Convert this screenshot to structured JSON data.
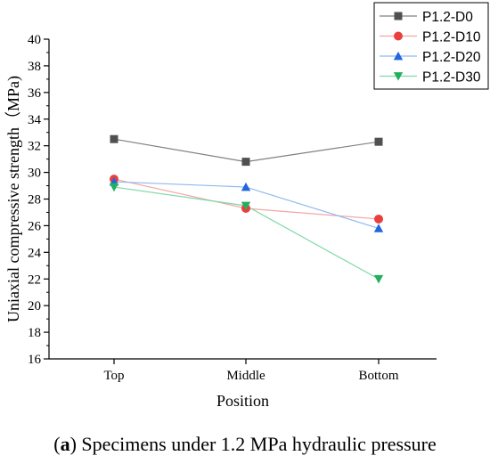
{
  "chart_data": {
    "type": "line",
    "categories": [
      "Top",
      "Middle",
      "Bottom"
    ],
    "series": [
      {
        "name": "P1.2-D0",
        "values": [
          32.5,
          30.8,
          32.3
        ],
        "color": "#808080",
        "marker_color": "#505050",
        "marker": "square"
      },
      {
        "name": "P1.2-D10",
        "values": [
          29.5,
          27.3,
          26.5
        ],
        "color": "#f4a6a6",
        "marker_color": "#e8413d",
        "marker": "circle"
      },
      {
        "name": "P1.2-D20",
        "values": [
          29.3,
          28.9,
          25.8
        ],
        "color": "#8fb9ef",
        "marker_color": "#1f66e0",
        "marker": "triangle-up"
      },
      {
        "name": "P1.2-D30",
        "values": [
          28.9,
          27.5,
          22.0
        ],
        "color": "#7fd8a7",
        "marker_color": "#22b05e",
        "marker": "triangle-down"
      }
    ],
    "xlabel": "Position",
    "ylabel": "Uniaxial compressive strength（MPa)",
    "ylim": [
      16,
      40
    ],
    "yticks": [
      16,
      18,
      20,
      22,
      24,
      26,
      28,
      30,
      32,
      34,
      36,
      38,
      40
    ],
    "legend_position": "top-right",
    "grid": false
  },
  "caption": {
    "letter": "a",
    "open": "(",
    "close": ")",
    "text": " Specimens under 1.2 MPa hydraulic pressure"
  }
}
